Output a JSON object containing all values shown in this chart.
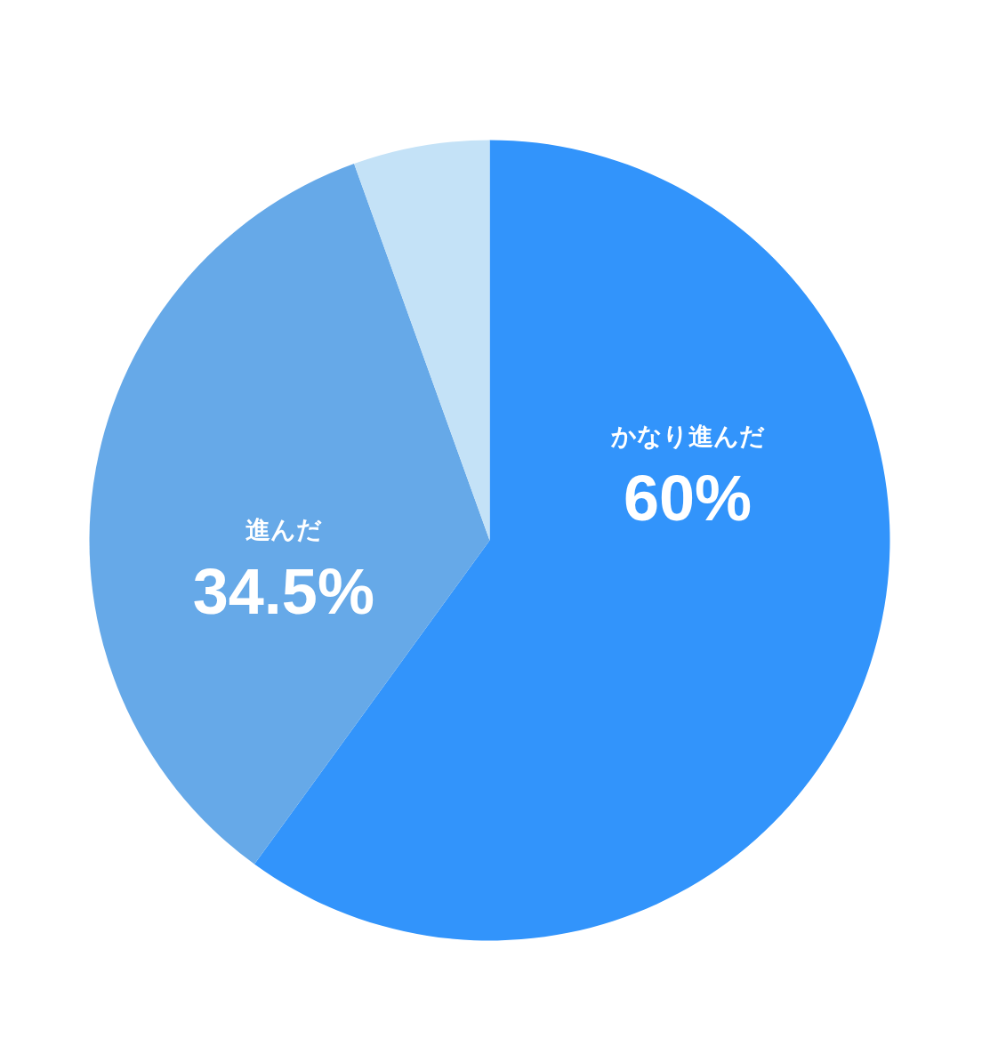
{
  "chart_data": {
    "type": "pie",
    "categories": [
      "かなり進んだ",
      "進んだ",
      null
    ],
    "values": [
      60,
      34.5,
      5.5
    ],
    "colors": [
      "#3294fb",
      "#66a9e8",
      "#c4e2f7"
    ],
    "value_labels": [
      "60%",
      "34.5%",
      null
    ]
  }
}
